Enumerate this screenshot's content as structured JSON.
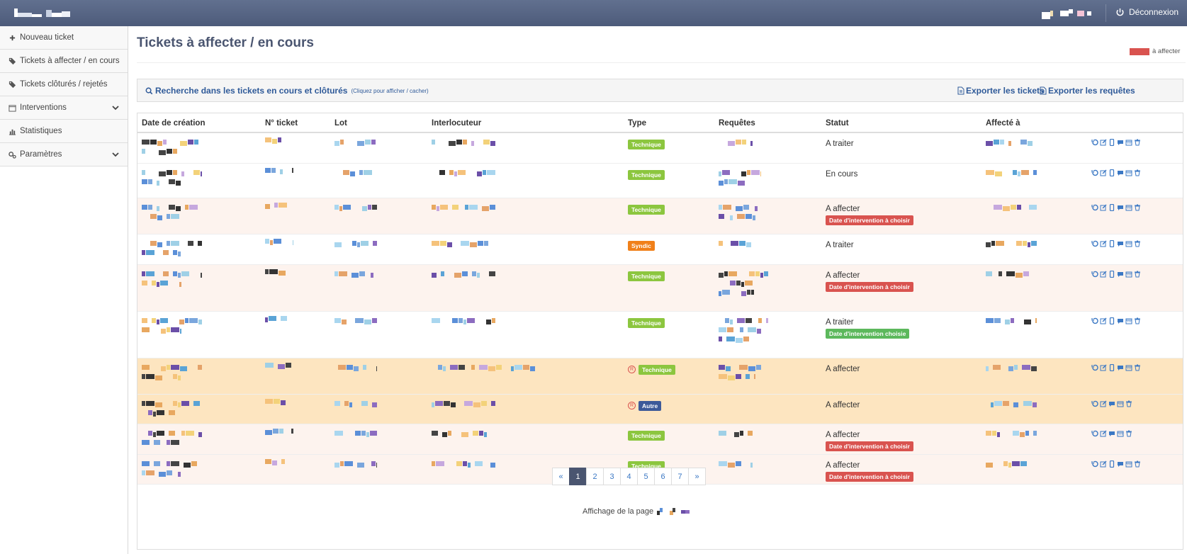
{
  "header": {
    "logout_label": "Déconnexion"
  },
  "sidebar": {
    "items": [
      {
        "label": "Nouveau ticket",
        "icon": "plus-icon"
      },
      {
        "label": "Tickets à affecter / en cours",
        "icon": "tags-icon"
      },
      {
        "label": "Tickets clôturés / rejetés",
        "icon": "tags-icon"
      },
      {
        "label": "Interventions",
        "icon": "calendar-icon"
      },
      {
        "label": "Statistiques",
        "icon": "bar-chart-icon"
      },
      {
        "label": "Paramètres",
        "icon": "cogs-icon"
      }
    ]
  },
  "main": {
    "title": "Tickets à affecter / en cours",
    "legend_label": "à affecter",
    "search": {
      "label": "Recherche dans les tickets en cours et clôturés",
      "hint": "(Cliquez pour afficher / cacher)"
    },
    "export_tickets": "Exporter les tickets",
    "export_requests": "Exporter les requêtes",
    "columns": [
      "Date de création",
      "N° ticket",
      "Lot",
      "Interlocuteur",
      "Type",
      "Requêtes",
      "Statut",
      "Affecté à"
    ],
    "rows": [
      {
        "type": "Technique",
        "status": "A traiter",
        "badge": ""
      },
      {
        "type": "Technique",
        "status": "En cours",
        "badge": ""
      },
      {
        "type": "Technique",
        "status": "A affecter",
        "badge": "Date d'intervention à choisir"
      },
      {
        "type": "Syndic",
        "status": "A traiter",
        "badge": ""
      },
      {
        "type": "Technique",
        "status": "A affecter",
        "badge": "Date d'intervention à choisir"
      },
      {
        "type": "Technique",
        "status": "A traiter",
        "badge": "Date d'intervention choisie"
      },
      {
        "type": "Technique",
        "status": "A affecter",
        "badge": ""
      },
      {
        "type": "Autre",
        "status": "A affecter",
        "badge": ""
      },
      {
        "type": "Technique",
        "status": "A affecter",
        "badge": "Date d'intervention à choisir"
      },
      {
        "type": "Technique",
        "status": "A affecter",
        "badge": "Date d'intervention à choisir"
      }
    ],
    "pagination": {
      "prev": "«",
      "pages": [
        "1",
        "2",
        "3",
        "4",
        "5",
        "6",
        "7"
      ],
      "next": "»",
      "current": "1"
    },
    "page_info_label": "Affichage de la page"
  },
  "colors": {
    "topbar": "#55637f",
    "row_affecter": "#fdf3ee",
    "row_reception": "#fde5c0",
    "badge_technique": "#8cc63f",
    "badge_syndic": "#f0801a",
    "badge_autre": "#3d5a99",
    "badge_a_choisir": "#d9534f",
    "badge_choisie": "#5cb85c"
  }
}
